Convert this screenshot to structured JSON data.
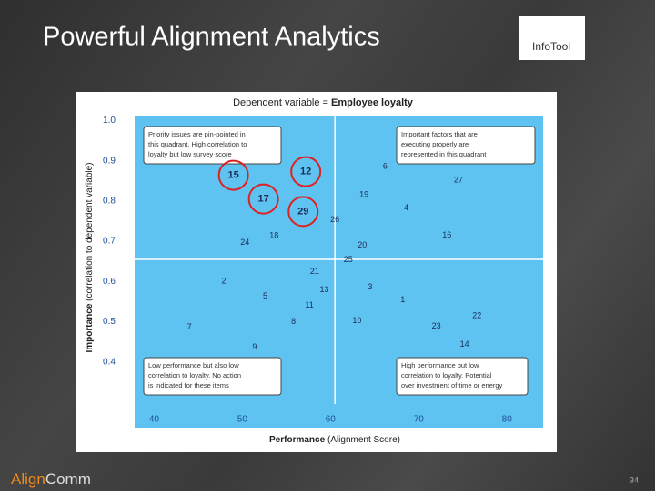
{
  "slide": {
    "title": "Powerful Alignment Analytics",
    "logo": "InfoTool",
    "footer_logo": [
      "Align",
      "Comm"
    ],
    "page_number": 34
  },
  "chart_data": {
    "type": "scatter",
    "title": {
      "plain": "Dependent variable = ",
      "bold": "Employee loyalty"
    },
    "x_label": {
      "bold": "Performance",
      "plain": "(Alignment Score)"
    },
    "y_label": {
      "bold": "Importance",
      "plain": "(correlation to dependent variable)"
    },
    "labels": [
      "15",
      "12",
      "17",
      "29",
      "6",
      "27",
      "19",
      "4",
      "26",
      "16",
      "24",
      "18",
      "20",
      "25",
      "21",
      "2",
      "13",
      "3",
      "5",
      "1",
      "11",
      "8",
      "10",
      "23",
      "22",
      "7",
      "14",
      "9"
    ],
    "x": [
      49.0,
      57.2,
      52.4,
      56.9,
      66.2,
      74.5,
      63.8,
      68.6,
      60.5,
      73.2,
      50.3,
      53.6,
      63.6,
      62.0,
      58.2,
      47.9,
      59.3,
      64.5,
      52.6,
      68.2,
      57.6,
      55.8,
      63.0,
      72.0,
      76.6,
      44.0,
      75.2,
      51.4
    ],
    "y": [
      0.864,
      0.873,
      0.805,
      0.774,
      0.885,
      0.851,
      0.815,
      0.783,
      0.753,
      0.715,
      0.697,
      0.713,
      0.69,
      0.654,
      0.624,
      0.6,
      0.579,
      0.586,
      0.563,
      0.554,
      0.541,
      0.5,
      0.502,
      0.489,
      0.514,
      0.486,
      0.443,
      0.437
    ],
    "highlighted": [
      "15",
      "12",
      "17",
      "29"
    ],
    "x_divider": 60.5,
    "y_divider": 0.655,
    "xlim": [
      38,
      84
    ],
    "xticks": [
      40,
      50,
      60,
      70,
      80
    ],
    "ylim": [
      0.3,
      1.01
    ],
    "yticks": [
      {
        "value": 1,
        "label": "1.0"
      },
      0.9,
      0.8,
      0.7,
      0.6,
      0.5,
      0.4
    ],
    "annotations": [
      [
        "Priority issues are pin-pointed in",
        "this quadrant. High correlation to",
        "loyalty but low survey score"
      ],
      [
        "Important factors that are",
        "executing properly are",
        "represented in this quadrant"
      ],
      [
        "Low performance but also low",
        "correlation to loyalty. No action",
        "is indicated for these items"
      ],
      [
        "High performance but low",
        "correlation to loyalty. Potential",
        "over investment of time or energy"
      ]
    ]
  }
}
